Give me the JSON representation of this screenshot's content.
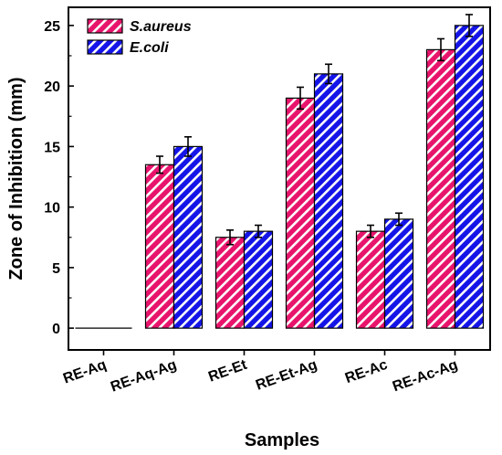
{
  "chart_data": {
    "type": "bar",
    "title": "",
    "xlabel": "Samples",
    "ylabel": "Zone of Inhibition (mm)",
    "categories": [
      "RE-Aq",
      "RE-Aq-Ag",
      "RE-Et",
      "RE-Et-Ag",
      "RE-Ac",
      "RE-Ac-Ag"
    ],
    "ylim": [
      -1.8,
      26.5
    ],
    "yticks": [
      0,
      5,
      10,
      15,
      20,
      25
    ],
    "grid": false,
    "legend_position": "top-left",
    "series": [
      {
        "name": "S.aureus",
        "color": "#e8146c",
        "pattern": "diagonal-white-hatch",
        "values": [
          0,
          13.5,
          7.5,
          19,
          8,
          23
        ],
        "errors": [
          0,
          0.7,
          0.6,
          0.9,
          0.5,
          0.9
        ]
      },
      {
        "name": "E.coli",
        "color": "#1414e8",
        "pattern": "diagonal-white-hatch",
        "values": [
          0,
          15,
          8,
          21,
          9,
          25
        ],
        "errors": [
          0,
          0.8,
          0.5,
          0.8,
          0.5,
          0.9
        ]
      }
    ]
  }
}
